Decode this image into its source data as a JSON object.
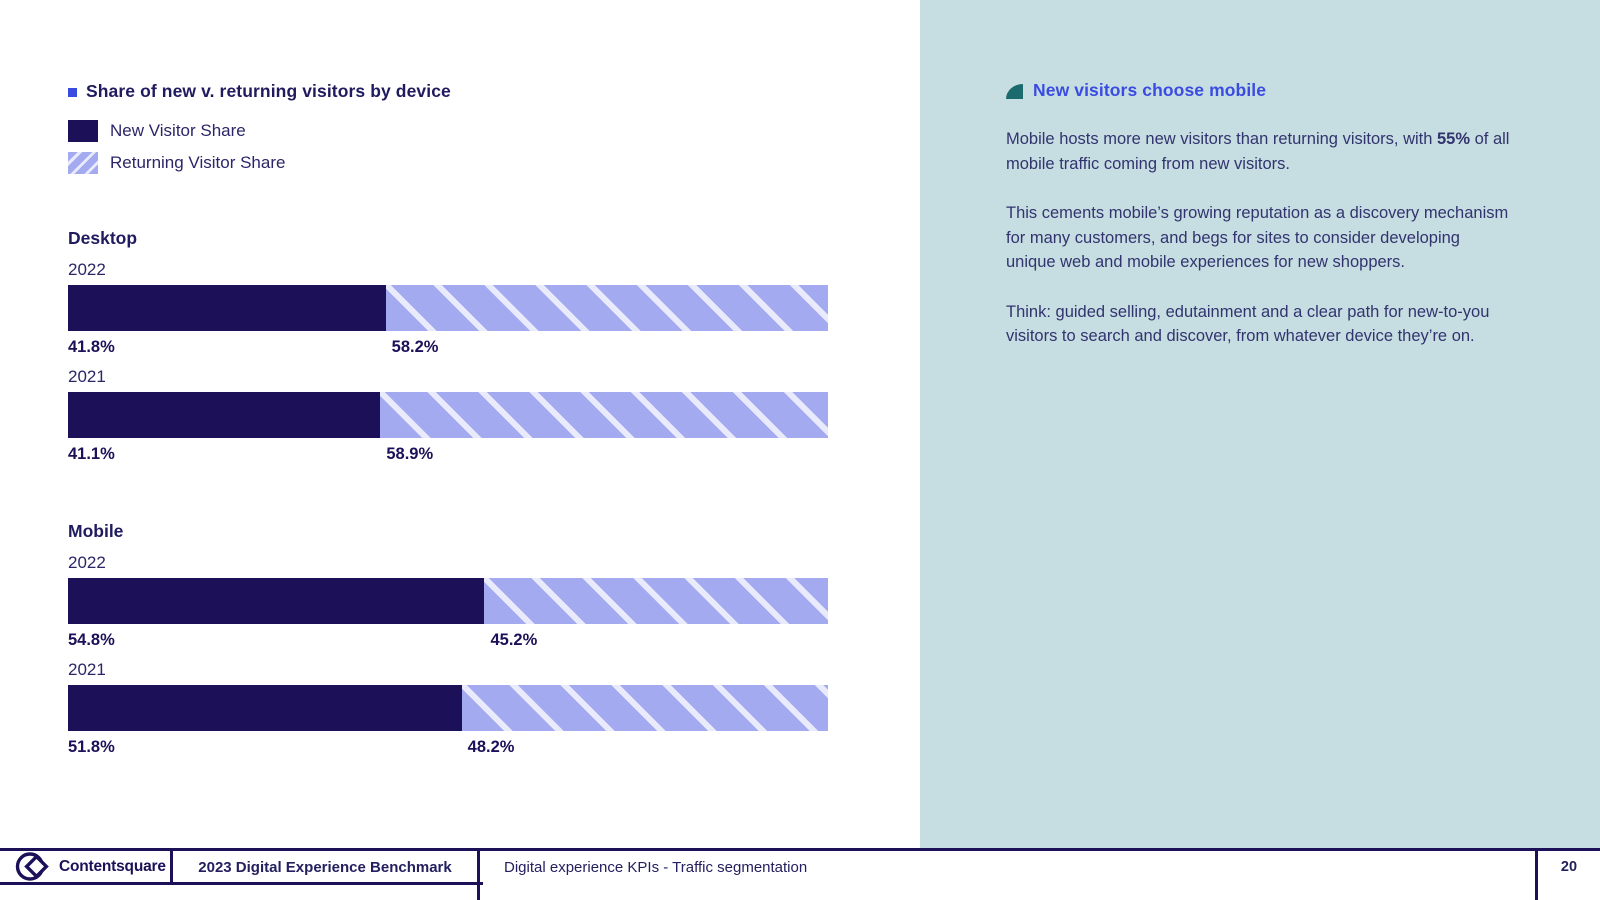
{
  "chart_data": {
    "type": "bar",
    "variant": "stacked-horizontal",
    "title": "Share of new v. returning visitors by device",
    "unit": "%",
    "xlim": [
      0,
      100
    ],
    "series_names": [
      "New Visitor Share",
      "Returning Visitor Share"
    ],
    "legend_position": "top-left",
    "groups": [
      {
        "label": "Desktop",
        "rows": [
          {
            "year": "2022",
            "new_visitor_share": 41.8,
            "returning_visitor_share": 58.2
          },
          {
            "year": "2021",
            "new_visitor_share": 41.1,
            "returning_visitor_share": 58.9
          }
        ]
      },
      {
        "label": "Mobile",
        "rows": [
          {
            "year": "2022",
            "new_visitor_share": 54.8,
            "returning_visitor_share": 45.2
          },
          {
            "year": "2021",
            "new_visitor_share": 51.8,
            "returning_visitor_share": 48.2
          }
        ]
      }
    ]
  },
  "insight": {
    "heading": "New visitors choose mobile",
    "paragraph1": {
      "before": "Mobile hosts more new visitors than returning visitors, with ",
      "bold": "55%",
      "after": " of all mobile traffic coming from new visitors."
    },
    "paragraph2": "This cements mobile’s growing reputation as a discovery mechanism for many customers, and begs for sites to consider developing unique web and mobile experiences for new shoppers.",
    "paragraph3": "Think: guided selling, edutainment and a clear path for new-to-you visitors to search and discover, from whatever device they’re on."
  },
  "footer": {
    "brand": "Contentsquare",
    "report_title": "2023 Digital Experience Benchmark",
    "section": "Digital experience KPIs - Traffic segmentation",
    "page_number": "20"
  },
  "colors": {
    "navy": "#1c1158",
    "accent_blue": "#3a4be1",
    "periwinkle": "#a3aaf0",
    "stripe_light": "#e9ebfc",
    "teal_panel": "#c6dee1",
    "teal_icon": "#1b6b6e",
    "text": "#32336f"
  }
}
